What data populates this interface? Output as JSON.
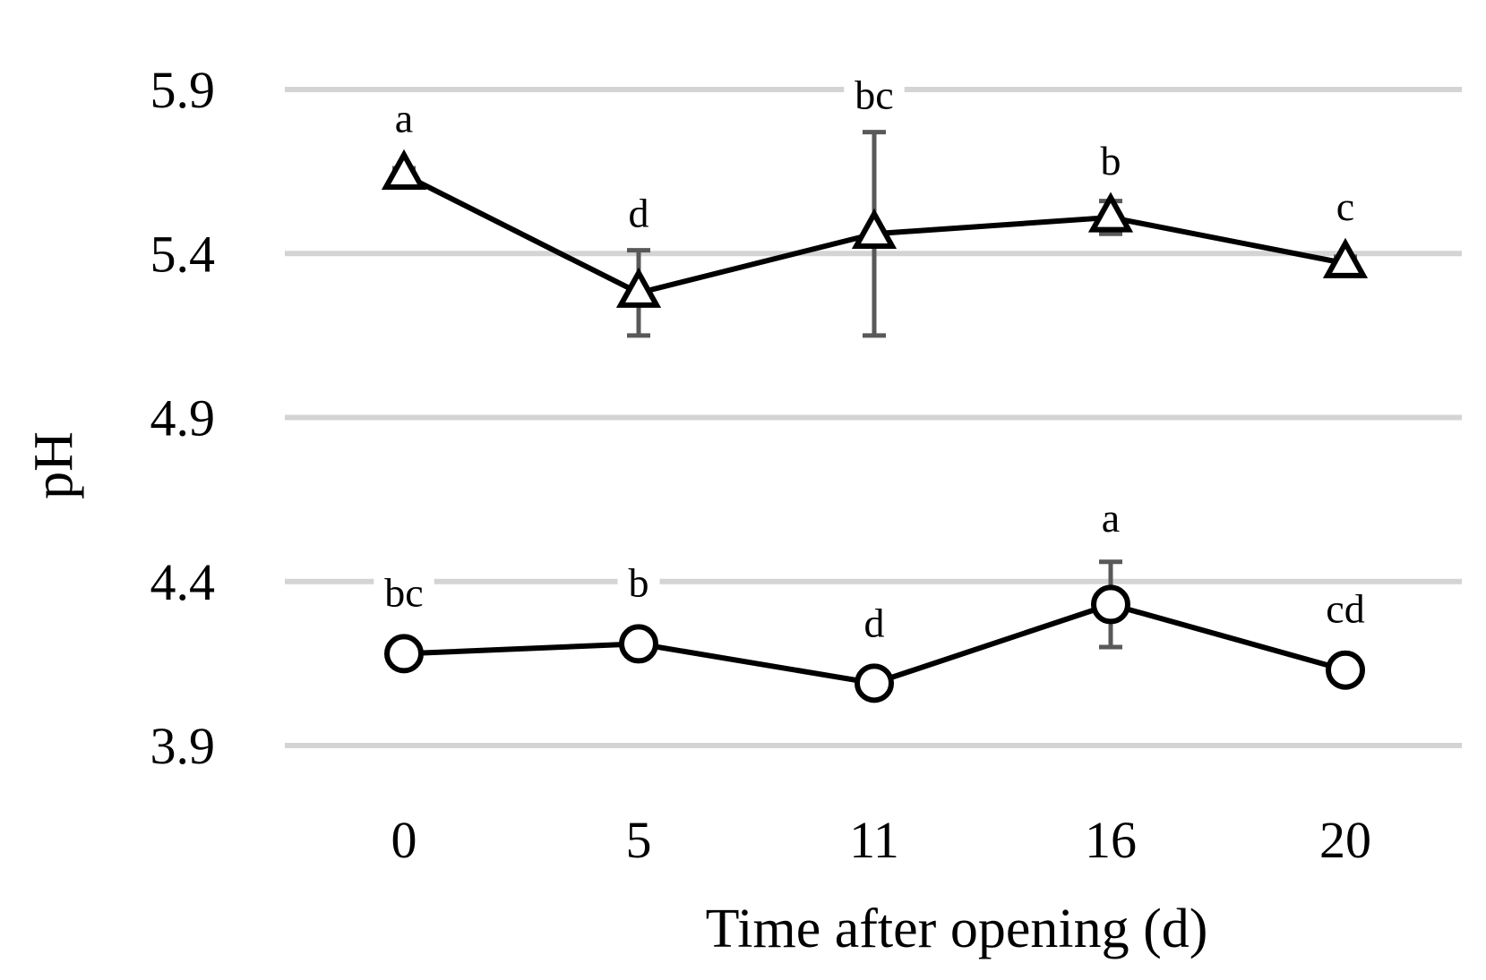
{
  "chart_data": {
    "type": "line",
    "xlabel": "Time after opening (d)",
    "ylabel": "pH",
    "categories": [
      "0",
      "5",
      "11",
      "16",
      "20"
    ],
    "y_ticks": [
      "3.9",
      "4.4",
      "4.9",
      "5.4",
      "5.9"
    ],
    "ylim": [
      3.9,
      5.9
    ],
    "grid": "horizontal",
    "series": [
      {
        "marker": "triangle",
        "values": [
          5.64,
          5.28,
          5.46,
          5.51,
          5.37
        ],
        "error": [
          0.02,
          0.13,
          0.31,
          0.05,
          0.02
        ],
        "labels": [
          "a",
          "d",
          "bc",
          "b",
          "c"
        ]
      },
      {
        "marker": "circle",
        "values": [
          4.18,
          4.21,
          4.09,
          4.33,
          4.13
        ],
        "error": [
          0.01,
          0.02,
          0.01,
          0.13,
          0.01
        ],
        "labels": [
          "bc",
          "b",
          "d",
          "a",
          "cd"
        ]
      }
    ],
    "colors": {
      "line": "#000000",
      "grid": "#d4d4d4",
      "error": "#595959"
    }
  }
}
